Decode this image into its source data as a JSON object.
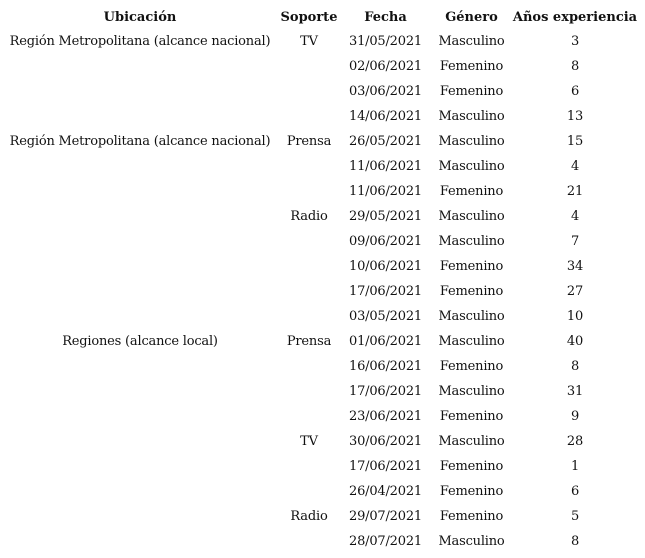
{
  "table": {
    "headers": [
      "Ubicación",
      "Soporte",
      "Fecha",
      "Género",
      "Años experiencia"
    ],
    "rows": [
      [
        "Región Metropolitana (alcance nacional)",
        "TV",
        "31/05/2021",
        "Masculino",
        "3"
      ],
      [
        "",
        "",
        "02/06/2021",
        "Femenino",
        "8"
      ],
      [
        "",
        "",
        "03/06/2021",
        "Femenino",
        "6"
      ],
      [
        "",
        "",
        "14/06/2021",
        "Masculino",
        "13"
      ],
      [
        "Región Metropolitana (alcance nacional)",
        "Prensa",
        "26/05/2021",
        "Masculino",
        "15"
      ],
      [
        "",
        "",
        "11/06/2021",
        "Masculino",
        "4"
      ],
      [
        "",
        "",
        "11/06/2021",
        "Femenino",
        "21"
      ],
      [
        "",
        "Radio",
        "29/05/2021",
        "Masculino",
        "4"
      ],
      [
        "",
        "",
        "09/06/2021",
        "Masculino",
        "7"
      ],
      [
        "",
        "",
        "10/06/2021",
        "Femenino",
        "34"
      ],
      [
        "",
        "",
        "17/06/2021",
        "Femenino",
        "27"
      ],
      [
        "",
        "",
        "03/05/2021",
        "Masculino",
        "10"
      ],
      [
        "Regiones (alcance local)",
        "Prensa",
        "01/06/2021",
        "Masculino",
        "40"
      ],
      [
        "",
        "",
        "16/06/2021",
        "Femenino",
        "8"
      ],
      [
        "",
        "",
        "17/06/2021",
        "Masculino",
        "31"
      ],
      [
        "",
        "",
        "23/06/2021",
        "Femenino",
        "9"
      ],
      [
        "",
        "TV",
        "30/06/2021",
        "Masculino",
        "28"
      ],
      [
        "",
        "",
        "17/06/2021",
        "Femenino",
        "1"
      ],
      [
        "",
        "",
        "26/04/2021",
        "Femenino",
        "6"
      ],
      [
        "",
        "Radio",
        "29/07/2021",
        "Femenino",
        "5"
      ],
      [
        "",
        "",
        "28/07/2021",
        "Masculino",
        "8"
      ]
    ]
  }
}
